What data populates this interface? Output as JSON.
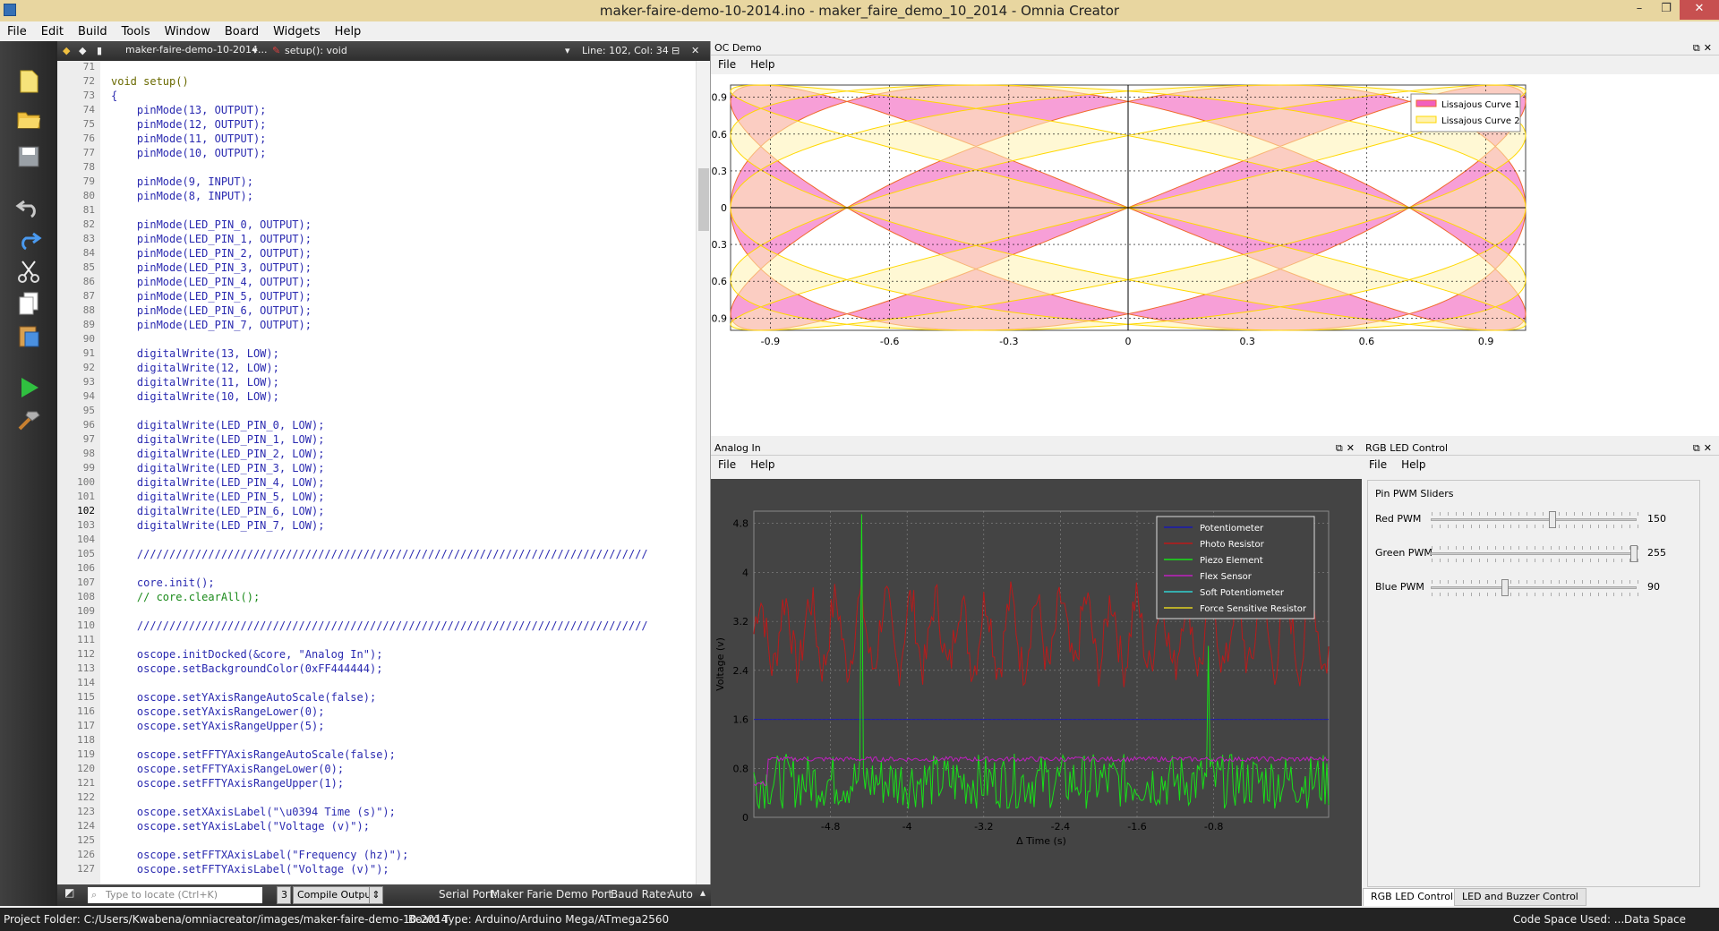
{
  "window": {
    "title": "maker-faire-demo-10-2014.ino - maker_faire_demo_10_2014 - Omnia Creator",
    "min": "–",
    "max": "❐",
    "close": "✕"
  },
  "menu": [
    "File",
    "Edit",
    "Build",
    "Tools",
    "Window",
    "Board",
    "Widgets",
    "Help"
  ],
  "toolbar_icons": [
    "new-file",
    "open-folder",
    "save",
    "undo",
    "redo",
    "cut",
    "copy",
    "paste",
    "run",
    "build"
  ],
  "editor": {
    "file": "maker-faire-demo-10-2014...",
    "function": "setup(): void",
    "position": "Line: 102, Col: 34",
    "first_line_number": 71,
    "current_line": 102,
    "lines": [
      "",
      "void setup()",
      "{",
      "    pinMode(13, OUTPUT);",
      "    pinMode(12, OUTPUT);",
      "    pinMode(11, OUTPUT);",
      "    pinMode(10, OUTPUT);",
      "",
      "    pinMode(9, INPUT);",
      "    pinMode(8, INPUT);",
      "",
      "    pinMode(LED_PIN_0, OUTPUT);",
      "    pinMode(LED_PIN_1, OUTPUT);",
      "    pinMode(LED_PIN_2, OUTPUT);",
      "    pinMode(LED_PIN_3, OUTPUT);",
      "    pinMode(LED_PIN_4, OUTPUT);",
      "    pinMode(LED_PIN_5, OUTPUT);",
      "    pinMode(LED_PIN_6, OUTPUT);",
      "    pinMode(LED_PIN_7, OUTPUT);",
      "",
      "    digitalWrite(13, LOW);",
      "    digitalWrite(12, LOW);",
      "    digitalWrite(11, LOW);",
      "    digitalWrite(10, LOW);",
      "",
      "    digitalWrite(LED_PIN_0, LOW);",
      "    digitalWrite(LED_PIN_1, LOW);",
      "    digitalWrite(LED_PIN_2, LOW);",
      "    digitalWrite(LED_PIN_3, LOW);",
      "    digitalWrite(LED_PIN_4, LOW);",
      "    digitalWrite(LED_PIN_5, LOW);",
      "    digitalWrite(LED_PIN_6, LOW);",
      "    digitalWrite(LED_PIN_7, LOW);",
      "",
      "    ///////////////////////////////////////////////////////////////////////////////",
      "",
      "    core.init();",
      "    // core.clearAll();",
      "",
      "    ///////////////////////////////////////////////////////////////////////////////",
      "",
      "    oscope.initDocked(&core, \"Analog In\");",
      "    oscope.setBackgroundColor(0xFF444444);",
      "",
      "    oscope.setYAxisRangeAutoScale(false);",
      "    oscope.setYAxisRangeLower(0);",
      "    oscope.setYAxisRangeUpper(5);",
      "",
      "    oscope.setFFTYAxisRangeAutoScale(false);",
      "    oscope.setFFTYAxisRangeLower(0);",
      "    oscope.setFFTYAxisRangeUpper(1);",
      "",
      "    oscope.setXAxisLabel(\"\\u0394 Time (s)\");",
      "    oscope.setYAxisLabel(\"Voltage (v)\");",
      "",
      "    oscope.setFFTXAxisLabel(\"Frequency (hz)\");",
      "    oscope.setFFTYAxisLabel(\"Voltage (v)\");"
    ]
  },
  "editor_bottom": {
    "locate_placeholder": "Type to locate (Ctrl+K)",
    "compile_count": "3",
    "compile_label": "Compile Output",
    "serial_label": "Serial Port:",
    "serial_value": "Maker Farie Demo Port",
    "baud_label": "Baud Rate:",
    "baud_value": "Auto"
  },
  "status": {
    "project_folder": "Project Folder:  C:/Users/Kwabena/omniacreator/images/maker-faire-demo-10-2014",
    "board_type": "Board Type:  Arduino/Arduino Mega/ATmega2560",
    "code_space": "Code Space Used:  ...",
    "data_space": "Data Space Used:  ..."
  },
  "oc_demo": {
    "title": "OC Demo",
    "menu": [
      "File",
      "Help"
    ]
  },
  "analog_in": {
    "title": "Analog In",
    "menu": [
      "File",
      "Help"
    ]
  },
  "rgb": {
    "title": "RGB LED Control",
    "menu": [
      "File",
      "Help"
    ],
    "group": "Pin PWM Sliders",
    "sliders": [
      {
        "label": "Red PWM",
        "value": 150,
        "max": 255
      },
      {
        "label": "Green PWM",
        "value": 255,
        "max": 255
      },
      {
        "label": "Blue PWM",
        "value": 90,
        "max": 255
      }
    ],
    "tabs": [
      "RGB LED Control",
      "LED and Buzzer Control"
    ]
  },
  "colors": {
    "lissajous1_fill": "#f25fbd",
    "lissajous1_line": "#f06a2a",
    "lissajous2_fill": "#fff2b0",
    "lissajous2_line": "#ffd800",
    "oscope_bg": "#444444",
    "potentiometer": "#1a1ab0",
    "photo": "#bb1a1a",
    "piezo": "#18e018",
    "flex": "#c020c0"
  },
  "chart_data": [
    {
      "type": "line",
      "title": "",
      "xlim": [
        -1,
        1
      ],
      "ylim": [
        -1,
        1
      ],
      "x_ticks": [
        "-0.9",
        "-0.6",
        "-0.3",
        "0",
        "0.3",
        "0.6",
        "0.9"
      ],
      "y_ticks": [
        "0.9",
        "0.6",
        "0.3",
        "0",
        "-0.3",
        "-0.6",
        "-0.9"
      ],
      "grid": true,
      "legend_position": "top-right",
      "series": [
        {
          "name": "Lissajous Curve 1",
          "fx": 3,
          "fy": 4
        },
        {
          "name": "Lissajous Curve 2",
          "fx": 5,
          "fy": 4
        }
      ]
    },
    {
      "type": "line",
      "title": "",
      "xlabel": "Δ Time (s)",
      "ylabel": "Voltage (v)",
      "xlim": [
        -5.6,
        0.4
      ],
      "ylim": [
        0,
        5
      ],
      "x_ticks": [
        "-4.8",
        "-4",
        "-3.2",
        "-2.4",
        "-1.6",
        "-0.8"
      ],
      "y_ticks": [
        "4.8",
        "4",
        "3.2",
        "2.4",
        "1.6",
        "0.8",
        "0"
      ],
      "legend_position": "top-right",
      "series": [
        {
          "name": "Potentiometer",
          "level": 1.6
        },
        {
          "name": "Photo Resistor",
          "level": 3.0
        },
        {
          "name": "Piezo Element",
          "level": 0.5
        },
        {
          "name": "Flex Sensor",
          "level": 0.95
        },
        {
          "name": "Soft Potentiometer"
        },
        {
          "name": "Force Sensitive Resistor"
        }
      ]
    }
  ]
}
